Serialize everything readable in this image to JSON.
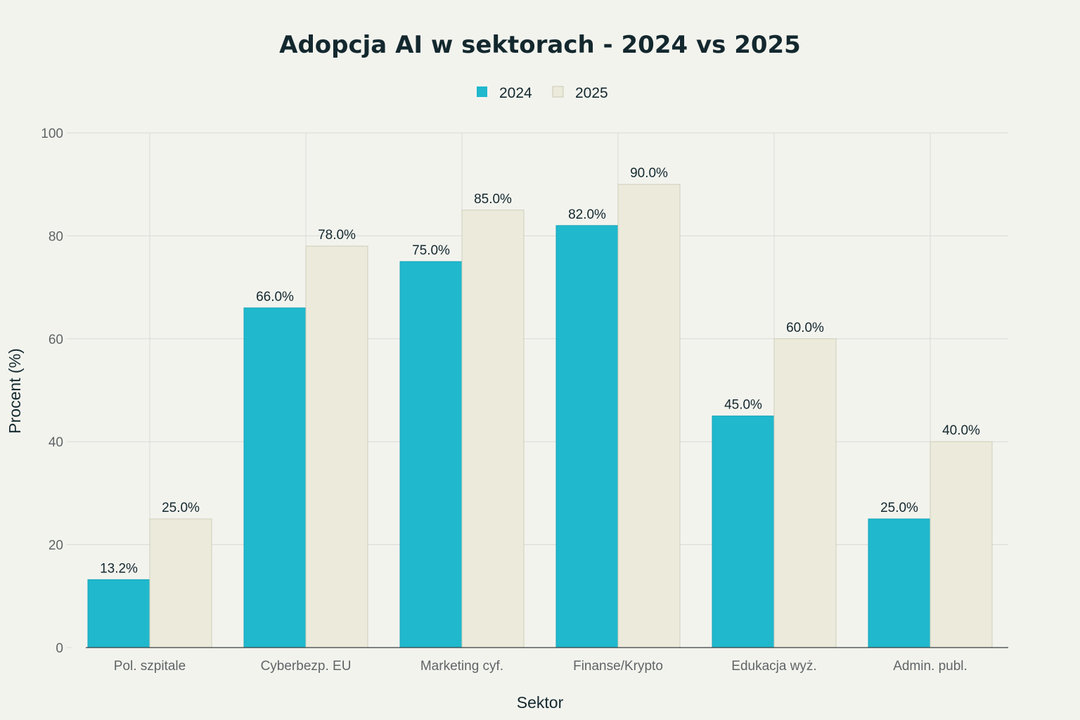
{
  "chart_data": {
    "type": "bar",
    "title": "Adopcja AI w sektorach - 2024 vs 2025",
    "xlabel": "Sektor",
    "ylabel": "Procent (%)",
    "ylim": [
      0,
      100
    ],
    "yticks": [
      0,
      20,
      40,
      60,
      80,
      100
    ],
    "grid": true,
    "legend_position": "top-center",
    "categories": [
      "Pol. szpitale",
      "Cyberbezp. EU",
      "Marketing cyf.",
      "Finanse/Krypto",
      "Edukacja wyż.",
      "Admin. publ."
    ],
    "series": [
      {
        "name": "2024",
        "color": "#1fb8cd",
        "values": [
          13.2,
          66.0,
          75.0,
          82.0,
          45.0,
          25.0
        ],
        "labels": [
          "13.2%",
          "66.0%",
          "75.0%",
          "82.0%",
          "45.0%",
          "25.0%"
        ]
      },
      {
        "name": "2025",
        "color": "#eceadb",
        "values": [
          25.0,
          78.0,
          85.0,
          90.0,
          60.0,
          40.0
        ],
        "labels": [
          "25.0%",
          "78.0%",
          "85.0%",
          "90.0%",
          "60.0%",
          "40.0%"
        ]
      }
    ]
  }
}
